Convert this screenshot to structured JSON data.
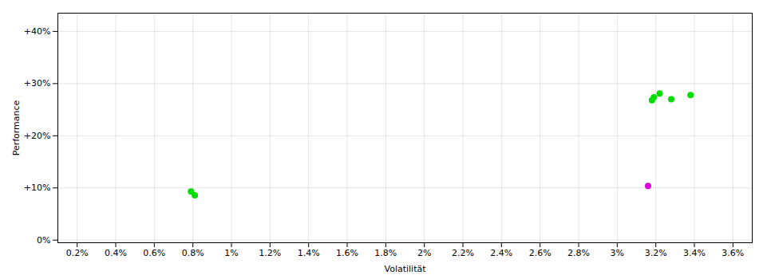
{
  "chart_data": {
    "type": "scatter",
    "xlabel": "Volatilität",
    "ylabel": "Performance",
    "xlim": [
      0.001,
      0.037
    ],
    "ylim": [
      -0.005,
      0.435
    ],
    "xticks": [
      {
        "value": 0.002,
        "label": "0.2%"
      },
      {
        "value": 0.004,
        "label": "0.4%"
      },
      {
        "value": 0.006,
        "label": "0.6%"
      },
      {
        "value": 0.008,
        "label": "0.8%"
      },
      {
        "value": 0.01,
        "label": "1%"
      },
      {
        "value": 0.012,
        "label": "1.2%"
      },
      {
        "value": 0.014,
        "label": "1.4%"
      },
      {
        "value": 0.016,
        "label": "1.6%"
      },
      {
        "value": 0.018,
        "label": "1.8%"
      },
      {
        "value": 0.02,
        "label": "2%"
      },
      {
        "value": 0.022,
        "label": "2.2%"
      },
      {
        "value": 0.024,
        "label": "2.4%"
      },
      {
        "value": 0.026,
        "label": "2.6%"
      },
      {
        "value": 0.028,
        "label": "2.8%"
      },
      {
        "value": 0.03,
        "label": "3%"
      },
      {
        "value": 0.032,
        "label": "3.2%"
      },
      {
        "value": 0.034,
        "label": "3.4%"
      },
      {
        "value": 0.036,
        "label": "3.6%"
      }
    ],
    "yticks": [
      {
        "value": 0.0,
        "label": "0%"
      },
      {
        "value": 0.1,
        "label": "+10%"
      },
      {
        "value": 0.2,
        "label": "+20%"
      },
      {
        "value": 0.3,
        "label": "+30%"
      },
      {
        "value": 0.4,
        "label": "+40%"
      }
    ],
    "grid": true,
    "series": [
      {
        "color": "#00dd00",
        "x": [
          0.0079,
          0.0081,
          0.0318,
          0.0319,
          0.0322,
          0.0328,
          0.0338
        ],
        "y": [
          0.093,
          0.086,
          0.268,
          0.274,
          0.281,
          0.27,
          0.278
        ]
      },
      {
        "color": "#dd00dd",
        "x": [
          0.0316
        ],
        "y": [
          0.104
        ]
      }
    ]
  }
}
